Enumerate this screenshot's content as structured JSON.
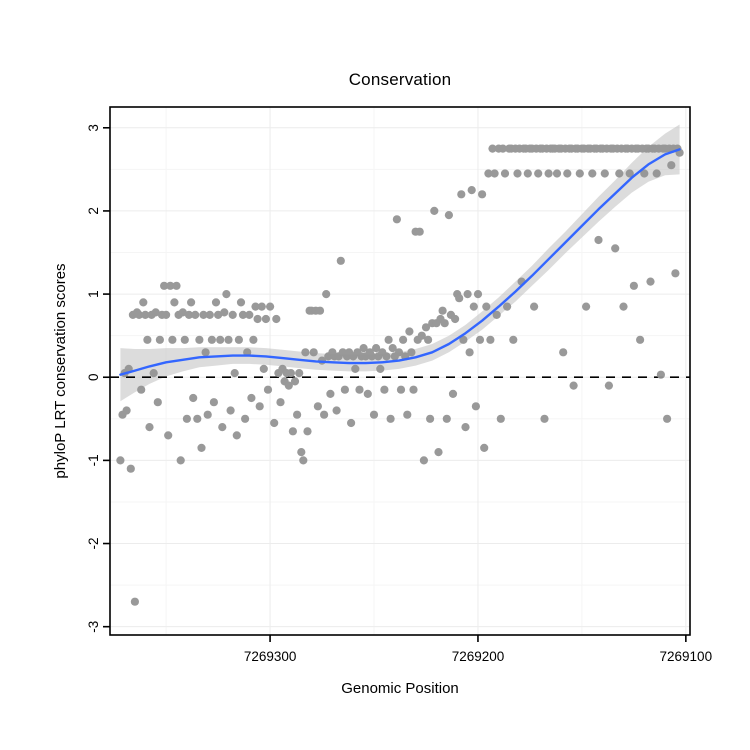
{
  "page": {
    "title": "Conservation"
  },
  "chart_data": {
    "type": "scatter",
    "title": "Conservation",
    "xlabel": "Genomic Position",
    "ylabel": "phyloP LRT conservation scores",
    "x_axis": {
      "reversed": true,
      "ticks": [
        7269300,
        7269200,
        7269100
      ],
      "minor_ticks": [
        7269350,
        7269250,
        7269150
      ],
      "range_left_to_right": [
        7269377,
        7269098
      ]
    },
    "y_axis": {
      "ticks": [
        -3,
        -2,
        -1,
        0,
        1,
        2,
        3
      ],
      "minor_ticks": [
        -2.5,
        -1.5,
        -0.5,
        0.5,
        1.5,
        2.5
      ],
      "range": [
        -3.1,
        3.25
      ]
    },
    "reference_line": {
      "y": 0,
      "style": "dashed",
      "color": "#000000"
    },
    "colors": {
      "points": "#949494",
      "smooth_line": "#3366FF",
      "ribbon": "#BFBFBF",
      "grid_major": "#ECECEC",
      "grid_minor": "#F5F5F5",
      "panel_border": "#000000"
    },
    "points": [
      [
        7269372,
        -1.0
      ],
      [
        7269371,
        -0.45
      ],
      [
        7269370,
        0.05
      ],
      [
        7269369,
        -0.4
      ],
      [
        7269368,
        0.1
      ],
      [
        7269367,
        -1.1
      ],
      [
        7269366,
        0.75
      ],
      [
        7269365,
        -2.7
      ],
      [
        7269364,
        0.78
      ],
      [
        7269363,
        0.75
      ],
      [
        7269362,
        -0.15
      ],
      [
        7269361,
        0.9
      ],
      [
        7269360,
        0.75
      ],
      [
        7269359,
        0.45
      ],
      [
        7269358,
        -0.6
      ],
      [
        7269357,
        0.75
      ],
      [
        7269356,
        0.05
      ],
      [
        7269355,
        0.78
      ],
      [
        7269354,
        -0.3
      ],
      [
        7269353,
        0.45
      ],
      [
        7269352,
        0.75
      ],
      [
        7269351,
        1.1
      ],
      [
        7269350,
        0.75
      ],
      [
        7269349,
        -0.7
      ],
      [
        7269348,
        1.1
      ],
      [
        7269347,
        0.45
      ],
      [
        7269346,
        0.9
      ],
      [
        7269345,
        1.1
      ],
      [
        7269344,
        0.75
      ],
      [
        7269343,
        -1.0
      ],
      [
        7269342,
        0.78
      ],
      [
        7269341,
        0.45
      ],
      [
        7269340,
        -0.5
      ],
      [
        7269339,
        0.75
      ],
      [
        7269338,
        0.9
      ],
      [
        7269337,
        -0.25
      ],
      [
        7269336,
        0.75
      ],
      [
        7269335,
        -0.5
      ],
      [
        7269334,
        0.45
      ],
      [
        7269333,
        -0.85
      ],
      [
        7269332,
        0.75
      ],
      [
        7269331,
        0.3
      ],
      [
        7269330,
        -0.45
      ],
      [
        7269329,
        0.75
      ],
      [
        7269328,
        0.45
      ],
      [
        7269327,
        -0.3
      ],
      [
        7269326,
        0.9
      ],
      [
        7269325,
        0.75
      ],
      [
        7269324,
        0.45
      ],
      [
        7269323,
        -0.6
      ],
      [
        7269322,
        0.78
      ],
      [
        7269321,
        1.0
      ],
      [
        7269320,
        0.45
      ],
      [
        7269319,
        -0.4
      ],
      [
        7269318,
        0.75
      ],
      [
        7269317,
        0.05
      ],
      [
        7269316,
        -0.7
      ],
      [
        7269315,
        0.45
      ],
      [
        7269314,
        0.9
      ],
      [
        7269313,
        0.75
      ],
      [
        7269312,
        -0.5
      ],
      [
        7269311,
        0.3
      ],
      [
        7269310,
        0.75
      ],
      [
        7269309,
        -0.25
      ],
      [
        7269308,
        0.45
      ],
      [
        7269307,
        0.85
      ],
      [
        7269306,
        0.7
      ],
      [
        7269305,
        -0.35
      ],
      [
        7269304,
        0.85
      ],
      [
        7269303,
        0.1
      ],
      [
        7269302,
        0.7
      ],
      [
        7269301,
        -0.15
      ],
      [
        7269300,
        0.85
      ],
      [
        7269298,
        -0.55
      ],
      [
        7269297,
        0.7
      ],
      [
        7269296,
        0.05
      ],
      [
        7269295,
        -0.3
      ],
      [
        7269294,
        0.1
      ],
      [
        7269293,
        -0.05
      ],
      [
        7269292,
        0.05
      ],
      [
        7269291,
        -0.1
      ],
      [
        7269290,
        0.05
      ],
      [
        7269289,
        -0.65
      ],
      [
        7269288,
        -0.05
      ],
      [
        7269287,
        -0.45
      ],
      [
        7269286,
        0.05
      ],
      [
        7269285,
        -0.9
      ],
      [
        7269284,
        -1.0
      ],
      [
        7269283,
        0.3
      ],
      [
        7269282,
        -0.65
      ],
      [
        7269281,
        0.8
      ],
      [
        7269280,
        0.8
      ],
      [
        7269279,
        0.3
      ],
      [
        7269278,
        0.8
      ],
      [
        7269277,
        -0.35
      ],
      [
        7269276,
        0.8
      ],
      [
        7269275,
        0.2
      ],
      [
        7269274,
        -0.45
      ],
      [
        7269273,
        1.0
      ],
      [
        7269272,
        0.25
      ],
      [
        7269271,
        -0.2
      ],
      [
        7269270,
        0.3
      ],
      [
        7269269,
        0.25
      ],
      [
        7269268,
        -0.4
      ],
      [
        7269267,
        0.25
      ],
      [
        7269266,
        1.4
      ],
      [
        7269265,
        0.3
      ],
      [
        7269264,
        -0.15
      ],
      [
        7269263,
        0.25
      ],
      [
        7269262,
        0.3
      ],
      [
        7269261,
        -0.55
      ],
      [
        7269260,
        0.25
      ],
      [
        7269259,
        0.1
      ],
      [
        7269258,
        0.3
      ],
      [
        7269257,
        -0.15
      ],
      [
        7269256,
        0.25
      ],
      [
        7269255,
        0.35
      ],
      [
        7269254,
        0.25
      ],
      [
        7269253,
        -0.2
      ],
      [
        7269252,
        0.3
      ],
      [
        7269251,
        0.25
      ],
      [
        7269250,
        -0.45
      ],
      [
        7269249,
        0.35
      ],
      [
        7269248,
        0.25
      ],
      [
        7269247,
        0.1
      ],
      [
        7269246,
        0.3
      ],
      [
        7269245,
        -0.15
      ],
      [
        7269244,
        0.25
      ],
      [
        7269243,
        0.45
      ],
      [
        7269242,
        -0.5
      ],
      [
        7269241,
        0.35
      ],
      [
        7269240,
        0.25
      ],
      [
        7269239,
        1.9
      ],
      [
        7269238,
        0.3
      ],
      [
        7269237,
        -0.15
      ],
      [
        7269236,
        0.45
      ],
      [
        7269235,
        0.25
      ],
      [
        7269234,
        -0.45
      ],
      [
        7269233,
        0.55
      ],
      [
        7269232,
        0.3
      ],
      [
        7269231,
        -0.15
      ],
      [
        7269230,
        1.75
      ],
      [
        7269229,
        0.45
      ],
      [
        7269228,
        1.75
      ],
      [
        7269227,
        0.5
      ],
      [
        7269226,
        -1.0
      ],
      [
        7269225,
        0.6
      ],
      [
        7269224,
        0.45
      ],
      [
        7269223,
        -0.5
      ],
      [
        7269222,
        0.65
      ],
      [
        7269221,
        2.0
      ],
      [
        7269220,
        0.65
      ],
      [
        7269219,
        -0.9
      ],
      [
        7269218,
        0.7
      ],
      [
        7269217,
        0.8
      ],
      [
        7269216,
        0.65
      ],
      [
        7269215,
        -0.5
      ],
      [
        7269214,
        1.95
      ],
      [
        7269213,
        0.75
      ],
      [
        7269212,
        -0.2
      ],
      [
        7269211,
        0.7
      ],
      [
        7269210,
        1.0
      ],
      [
        7269209,
        0.95
      ],
      [
        7269208,
        2.2
      ],
      [
        7269207,
        0.45
      ],
      [
        7269206,
        -0.6
      ],
      [
        7269205,
        1.0
      ],
      [
        7269204,
        0.3
      ],
      [
        7269203,
        2.25
      ],
      [
        7269202,
        0.85
      ],
      [
        7269201,
        -0.35
      ],
      [
        7269200,
        1.0
      ],
      [
        7269199,
        0.45
      ],
      [
        7269198,
        2.2
      ],
      [
        7269197,
        -0.85
      ],
      [
        7269196,
        0.85
      ],
      [
        7269195,
        2.45
      ],
      [
        7269194,
        0.45
      ],
      [
        7269193,
        2.75
      ],
      [
        7269192,
        2.45
      ],
      [
        7269191,
        0.75
      ],
      [
        7269190,
        2.75
      ],
      [
        7269189,
        -0.5
      ],
      [
        7269188,
        2.75
      ],
      [
        7269187,
        2.45
      ],
      [
        7269186,
        0.85
      ],
      [
        7269185,
        2.75
      ],
      [
        7269184,
        2.75
      ],
      [
        7269183,
        0.45
      ],
      [
        7269182,
        2.75
      ],
      [
        7269181,
        2.45
      ],
      [
        7269180,
        2.75
      ],
      [
        7269179,
        1.15
      ],
      [
        7269178,
        2.75
      ],
      [
        7269177,
        2.75
      ],
      [
        7269176,
        2.45
      ],
      [
        7269175,
        2.75
      ],
      [
        7269174,
        2.75
      ],
      [
        7269173,
        0.85
      ],
      [
        7269172,
        2.75
      ],
      [
        7269171,
        2.45
      ],
      [
        7269170,
        2.75
      ],
      [
        7269169,
        2.75
      ],
      [
        7269168,
        -0.5
      ],
      [
        7269167,
        2.75
      ],
      [
        7269166,
        2.45
      ],
      [
        7269165,
        2.75
      ],
      [
        7269164,
        2.75
      ],
      [
        7269163,
        2.75
      ],
      [
        7269162,
        2.45
      ],
      [
        7269161,
        2.75
      ],
      [
        7269160,
        2.75
      ],
      [
        7269159,
        0.3
      ],
      [
        7269158,
        2.75
      ],
      [
        7269157,
        2.45
      ],
      [
        7269156,
        2.75
      ],
      [
        7269155,
        2.75
      ],
      [
        7269154,
        -0.1
      ],
      [
        7269153,
        2.75
      ],
      [
        7269152,
        2.75
      ],
      [
        7269151,
        2.45
      ],
      [
        7269150,
        2.75
      ],
      [
        7269149,
        2.75
      ],
      [
        7269148,
        0.85
      ],
      [
        7269147,
        2.75
      ],
      [
        7269146,
        2.75
      ],
      [
        7269145,
        2.45
      ],
      [
        7269144,
        2.75
      ],
      [
        7269143,
        2.75
      ],
      [
        7269142,
        1.65
      ],
      [
        7269141,
        2.75
      ],
      [
        7269140,
        2.75
      ],
      [
        7269139,
        2.45
      ],
      [
        7269138,
        2.75
      ],
      [
        7269137,
        -0.1
      ],
      [
        7269136,
        2.75
      ],
      [
        7269135,
        2.75
      ],
      [
        7269134,
        1.55
      ],
      [
        7269133,
        2.75
      ],
      [
        7269132,
        2.45
      ],
      [
        7269131,
        2.75
      ],
      [
        7269130,
        0.85
      ],
      [
        7269129,
        2.75
      ],
      [
        7269128,
        2.75
      ],
      [
        7269127,
        2.45
      ],
      [
        7269126,
        2.75
      ],
      [
        7269125,
        1.1
      ],
      [
        7269124,
        2.75
      ],
      [
        7269123,
        2.75
      ],
      [
        7269122,
        0.45
      ],
      [
        7269121,
        2.75
      ],
      [
        7269120,
        2.45
      ],
      [
        7269119,
        2.75
      ],
      [
        7269118,
        2.75
      ],
      [
        7269117,
        1.15
      ],
      [
        7269116,
        2.75
      ],
      [
        7269115,
        2.75
      ],
      [
        7269114,
        2.45
      ],
      [
        7269113,
        2.75
      ],
      [
        7269112,
        0.03
      ],
      [
        7269111,
        2.75
      ],
      [
        7269110,
        2.75
      ],
      [
        7269109,
        -0.5
      ],
      [
        7269108,
        2.75
      ],
      [
        7269107,
        2.55
      ],
      [
        7269106,
        2.75
      ],
      [
        7269105,
        1.25
      ],
      [
        7269104,
        2.75
      ],
      [
        7269103,
        2.7
      ]
    ],
    "smooth": {
      "x": [
        7269372,
        7269365,
        7269358,
        7269350,
        7269342,
        7269334,
        7269326,
        7269318,
        7269310,
        7269302,
        7269294,
        7269286,
        7269278,
        7269270,
        7269262,
        7269254,
        7269246,
        7269238,
        7269230,
        7269222,
        7269214,
        7269206,
        7269198,
        7269190,
        7269182,
        7269174,
        7269166,
        7269158,
        7269150,
        7269142,
        7269134,
        7269126,
        7269118,
        7269110,
        7269103
      ],
      "y": [
        0.03,
        0.08,
        0.13,
        0.18,
        0.21,
        0.24,
        0.25,
        0.26,
        0.26,
        0.25,
        0.23,
        0.21,
        0.19,
        0.18,
        0.17,
        0.17,
        0.18,
        0.2,
        0.24,
        0.3,
        0.4,
        0.53,
        0.68,
        0.85,
        1.03,
        1.22,
        1.42,
        1.62,
        1.82,
        2.02,
        2.21,
        2.4,
        2.56,
        2.68,
        2.74
      ],
      "half_width": [
        0.32,
        0.26,
        0.21,
        0.17,
        0.14,
        0.12,
        0.11,
        0.1,
        0.1,
        0.1,
        0.1,
        0.1,
        0.1,
        0.1,
        0.1,
        0.1,
        0.1,
        0.1,
        0.1,
        0.1,
        0.1,
        0.1,
        0.11,
        0.11,
        0.12,
        0.12,
        0.13,
        0.13,
        0.14,
        0.15,
        0.16,
        0.18,
        0.21,
        0.25,
        0.3
      ]
    }
  }
}
